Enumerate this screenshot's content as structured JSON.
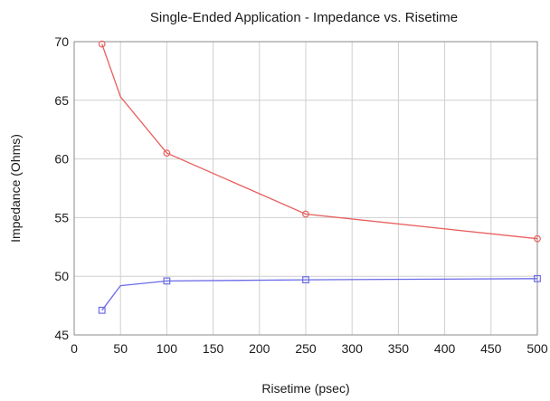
{
  "chart_data": {
    "type": "line",
    "title": "Single-Ended Application - Impedance vs. Risetime",
    "xlabel": "Risetime (psec)",
    "ylabel": "Impedance (Ohms)",
    "xlim": [
      0,
      500
    ],
    "ylim": [
      45,
      70
    ],
    "xticks": [
      0,
      50,
      100,
      150,
      200,
      250,
      300,
      350,
      400,
      450,
      500
    ],
    "yticks": [
      45,
      50,
      55,
      60,
      65,
      70
    ],
    "grid": true,
    "series": [
      {
        "color": "#e8605f",
        "marker": "circle",
        "x": [
          30,
          50,
          100,
          250,
          500
        ],
        "y": [
          69.8,
          65.3,
          60.5,
          55.3,
          53.2
        ],
        "marked": [
          true,
          false,
          true,
          true,
          true
        ]
      },
      {
        "color": "#6b6be8",
        "marker": "square",
        "x": [
          30,
          50,
          100,
          250,
          500
        ],
        "y": [
          47.1,
          49.2,
          49.6,
          49.7,
          49.8
        ],
        "marked": [
          true,
          false,
          true,
          true,
          true
        ]
      }
    ]
  }
}
